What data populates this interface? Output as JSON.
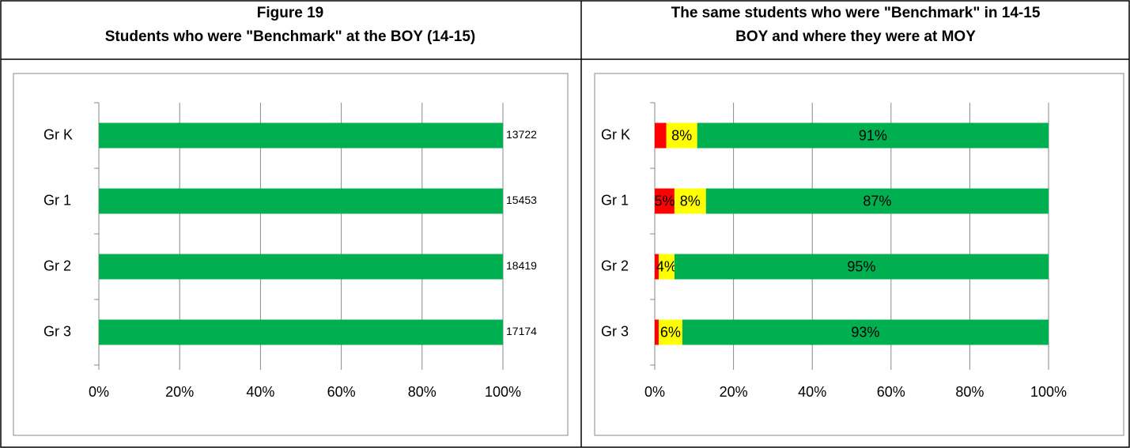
{
  "chart_data": [
    {
      "type": "bar",
      "orientation": "horizontal",
      "stacking": "percent",
      "title": [
        "Figure 19",
        "Students who were \"Benchmark\" at the BOY (14-15)"
      ],
      "categories": [
        "Gr K",
        "Gr 1",
        "Gr 2",
        "Gr 3"
      ],
      "series": [
        {
          "color": "#00b050",
          "values": [
            13722,
            15453,
            18419,
            17174
          ]
        }
      ],
      "xlim": [
        0,
        100
      ],
      "xticks": [
        {
          "value": 0,
          "label": "0%"
        },
        {
          "value": 20,
          "label": "20%"
        },
        {
          "value": 40,
          "label": "40%"
        },
        {
          "value": 60,
          "label": "60%"
        },
        {
          "value": 80,
          "label": "80%"
        },
        {
          "value": 100,
          "label": "100%"
        }
      ],
      "grid": true
    },
    {
      "type": "bar",
      "orientation": "horizontal",
      "stacking": "percent",
      "title": [
        "The same students who were \"Benchmark\" in 14-15",
        "BOY and where they were at MOY"
      ],
      "categories": [
        "Gr K",
        "Gr 1",
        "Gr 2",
        "Gr 3"
      ],
      "series": [
        {
          "color": "#ff0000",
          "values": [
            3,
            5,
            1,
            1
          ],
          "value_labels": [
            null,
            "5%",
            null,
            null
          ]
        },
        {
          "color": "#ffff00",
          "values": [
            8,
            8,
            4,
            6
          ],
          "value_labels": [
            "8%",
            "8%",
            "4%",
            "6%"
          ]
        },
        {
          "color": "#00b050",
          "values": [
            91,
            87,
            95,
            93
          ],
          "value_labels": [
            "91%",
            "87%",
            "95%",
            "93%"
          ]
        }
      ],
      "xlim": [
        0,
        100
      ],
      "xticks": [
        {
          "value": 0,
          "label": "0%"
        },
        {
          "value": 20,
          "label": "20%"
        },
        {
          "value": 40,
          "label": "40%"
        },
        {
          "value": 60,
          "label": "60%"
        },
        {
          "value": 80,
          "label": "80%"
        },
        {
          "value": 100,
          "label": "100%"
        }
      ],
      "grid": true
    }
  ]
}
